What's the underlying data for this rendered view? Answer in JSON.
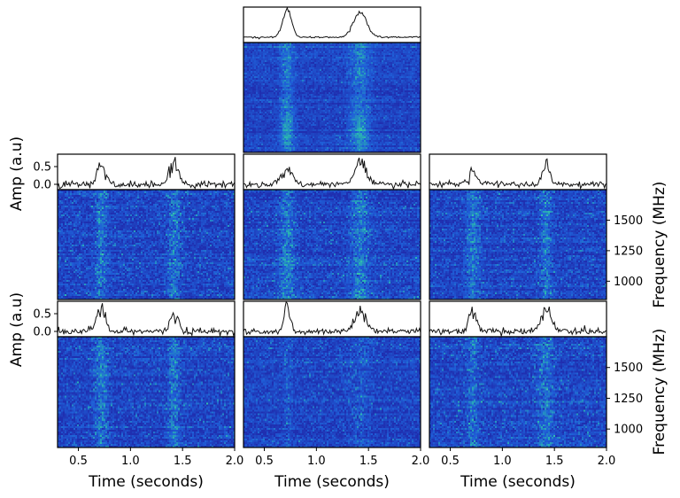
{
  "chart_data": {
    "type": "heatmap",
    "description_layout": "grid",
    "x_axis": {
      "label": "Time (seconds)",
      "range": [
        0.3,
        2.0
      ],
      "ticks": [
        0.5,
        1.0,
        1.5,
        2.0
      ],
      "tick_labels": [
        "0.5",
        "1.0",
        "1.5",
        "2.0"
      ]
    },
    "amp_axis": {
      "label": "Amp (a.u)",
      "ticks": [
        0.0,
        0.5
      ],
      "tick_labels": [
        "0.0",
        "0.5"
      ],
      "range": [
        -0.15,
        0.85
      ]
    },
    "freq_axis": {
      "label": "Frequency (MHz)",
      "range": [
        850,
        1750
      ],
      "ticks": [
        1000,
        1250,
        1500
      ],
      "tick_labels": [
        "1000",
        "1250",
        "1500"
      ]
    },
    "colormap": [
      "#1f2fb0",
      "#1f5fd8",
      "#2ab8b0",
      "#5ad8a0"
    ],
    "pulses": [
      0.72,
      1.42
    ],
    "panels": [
      {
        "id": "top-center",
        "row": 0,
        "col": 1,
        "pulse_widths": [
          0.06,
          0.09
        ],
        "pulse_amps": [
          0.8,
          0.7
        ],
        "noise": 0.03,
        "intensity": 1.0
      },
      {
        "id": "mid-left",
        "row": 1,
        "col": 0,
        "pulse_widths": [
          0.05,
          0.06
        ],
        "pulse_amps": [
          0.55,
          0.6
        ],
        "noise": 0.12,
        "intensity": 0.55
      },
      {
        "id": "mid-center",
        "row": 1,
        "col": 1,
        "pulse_widths": [
          0.07,
          0.08
        ],
        "pulse_amps": [
          0.45,
          0.6
        ],
        "noise": 0.1,
        "intensity": 0.6
      },
      {
        "id": "mid-right",
        "row": 1,
        "col": 2,
        "pulse_widths": [
          0.06,
          0.05
        ],
        "pulse_amps": [
          0.35,
          0.6
        ],
        "noise": 0.1,
        "intensity": 0.55
      },
      {
        "id": "bottom-left",
        "row": 2,
        "col": 0,
        "pulse_widths": [
          0.06,
          0.05
        ],
        "pulse_amps": [
          0.65,
          0.55
        ],
        "noise": 0.12,
        "intensity": 0.6
      },
      {
        "id": "bottom-center",
        "row": 2,
        "col": 1,
        "pulse_widths": [
          0.04,
          0.08
        ],
        "pulse_amps": [
          0.7,
          0.5
        ],
        "noise": 0.1,
        "intensity": 0.25
      },
      {
        "id": "bottom-right",
        "row": 2,
        "col": 2,
        "pulse_widths": [
          0.05,
          0.07
        ],
        "pulse_amps": [
          0.6,
          0.55
        ],
        "noise": 0.12,
        "intensity": 0.5
      }
    ]
  }
}
